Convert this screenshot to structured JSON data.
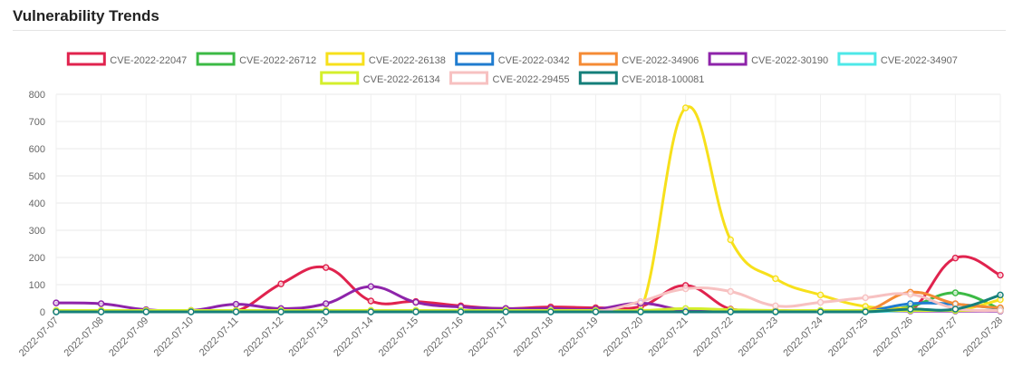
{
  "panel": {
    "title": "Vulnerability Trends"
  },
  "chart_data": {
    "type": "line",
    "title": "",
    "xlabel": "",
    "ylabel": "",
    "ylim": [
      0,
      800
    ],
    "yticks": [
      0,
      100,
      200,
      300,
      400,
      500,
      600,
      700,
      800
    ],
    "grid": true,
    "legend_position": "top",
    "x": [
      "2022-07-07",
      "2022-07-08",
      "2022-07-09",
      "2022-07-10",
      "2022-07-11",
      "2022-07-12",
      "2022-07-13",
      "2022-07-14",
      "2022-07-15",
      "2022-07-16",
      "2022-07-17",
      "2022-07-18",
      "2022-07-19",
      "2022-07-20",
      "2022-07-21",
      "2022-07-22",
      "2022-07-23",
      "2022-07-24",
      "2022-07-25",
      "2022-07-26",
      "2022-07-27",
      "2022-07-28"
    ],
    "series": [
      {
        "name": "CVE-2022-22047",
        "color": "#e0234e",
        "values": [
          2,
          2,
          2,
          2,
          2,
          103,
          163,
          40,
          38,
          22,
          12,
          18,
          15,
          20,
          97,
          10,
          5,
          3,
          5,
          5,
          198,
          135
        ]
      },
      {
        "name": "CVE-2022-26712",
        "color": "#3cba45",
        "values": [
          3,
          3,
          3,
          3,
          3,
          3,
          3,
          3,
          3,
          3,
          3,
          3,
          3,
          3,
          3,
          3,
          3,
          3,
          3,
          20,
          70,
          10
        ]
      },
      {
        "name": "CVE-2022-26138",
        "color": "#f7e01b",
        "values": [
          5,
          5,
          5,
          5,
          5,
          5,
          5,
          5,
          5,
          5,
          5,
          5,
          5,
          5,
          750,
          265,
          122,
          62,
          20,
          12,
          5,
          45
        ]
      },
      {
        "name": "CVE-2022-0342",
        "color": "#1f7ccf",
        "values": [
          0,
          0,
          0,
          0,
          0,
          0,
          0,
          0,
          0,
          0,
          0,
          0,
          0,
          0,
          0,
          0,
          0,
          0,
          2,
          30,
          28,
          12
        ]
      },
      {
        "name": "CVE-2022-34906",
        "color": "#f58b35",
        "values": [
          3,
          3,
          3,
          3,
          3,
          3,
          3,
          3,
          3,
          3,
          3,
          3,
          3,
          3,
          3,
          3,
          3,
          3,
          3,
          72,
          30,
          15
        ]
      },
      {
        "name": "CVE-2022-30190",
        "color": "#8e24aa",
        "values": [
          33,
          30,
          8,
          5,
          28,
          12,
          30,
          93,
          35,
          18,
          12,
          12,
          10,
          32,
          5,
          3,
          3,
          3,
          3,
          3,
          3,
          3
        ]
      },
      {
        "name": "CVE-2022-34907",
        "color": "#4ee8e8",
        "values": [
          0,
          0,
          0,
          0,
          0,
          0,
          0,
          0,
          0,
          0,
          0,
          0,
          0,
          0,
          0,
          0,
          0,
          0,
          0,
          5,
          5,
          5
        ]
      },
      {
        "name": "CVE-2022-26134",
        "color": "#d4ef2c",
        "values": [
          5,
          5,
          5,
          5,
          5,
          5,
          5,
          5,
          5,
          5,
          5,
          5,
          5,
          5,
          12,
          8,
          5,
          5,
          5,
          5,
          5,
          5
        ]
      },
      {
        "name": "CVE-2022-29455",
        "color": "#f7c1c1",
        "values": [
          0,
          0,
          0,
          0,
          0,
          0,
          0,
          0,
          0,
          0,
          0,
          0,
          0,
          38,
          85,
          75,
          22,
          35,
          52,
          65,
          12,
          5
        ]
      },
      {
        "name": "CVE-2018-100081",
        "color": "#157f7a",
        "values": [
          0,
          0,
          0,
          0,
          0,
          0,
          0,
          0,
          0,
          0,
          0,
          0,
          0,
          0,
          0,
          0,
          0,
          0,
          0,
          10,
          10,
          62
        ]
      }
    ]
  }
}
